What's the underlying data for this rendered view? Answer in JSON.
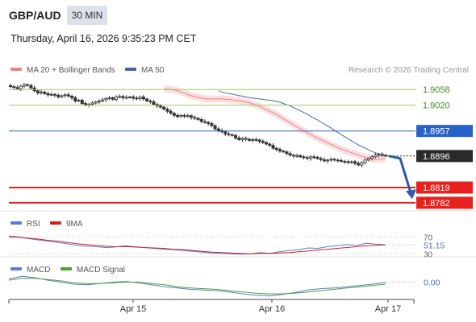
{
  "header": {
    "symbol": "GBP/AUD",
    "timeframe": "30 MIN",
    "datetime": "Thursday, April 16, 2026 9:35:23 PM CET"
  },
  "colors": {
    "ma20": "#f08080",
    "bollinger_fill": "#fbd9d9",
    "ma50": "#3d6aa8",
    "candle": "#333333",
    "resistance": "#9ccc65",
    "pivot": "#2962c8",
    "support": "#e8201e",
    "last_price": "#2a2a2a",
    "rsi": "#5b7bd5",
    "rsi_9ma": "#d62020",
    "macd": "#5b7bd5",
    "macd_signal": "#4ca32a",
    "arrow": "#2a5aa8"
  },
  "chart_data": [
    {
      "type": "candlestick",
      "panel": "price",
      "legend": [
        {
          "name": "MA 20 + Bollinger Bands",
          "color": "#f08080"
        },
        {
          "name": "MA 50",
          "color": "#3d6aa8"
        }
      ],
      "legend_position": "top-left",
      "credit": "Research © 2026 Trading Central",
      "y_range": [
        1.877,
        1.908
      ],
      "levels": [
        {
          "label": "1.9058",
          "value": 1.9058,
          "kind": "resistance"
        },
        {
          "label": "1.9020",
          "value": 1.902,
          "kind": "resistance"
        },
        {
          "label": "1.8957",
          "value": 1.8957,
          "kind": "pivot"
        },
        {
          "label": "1.8896",
          "value": 1.8896,
          "kind": "last"
        },
        {
          "label": "1.8819",
          "value": 1.8819,
          "kind": "support"
        },
        {
          "label": "1.8782",
          "value": 1.8782,
          "kind": "support"
        }
      ],
      "forecast": "bearish",
      "series": [
        {
          "name": "Close",
          "values": [
            1.9065,
            1.9063,
            1.906,
            1.9066,
            1.907,
            1.9068,
            1.9062,
            1.9055,
            1.905,
            1.9052,
            1.9048,
            1.9045,
            1.9046,
            1.9044,
            1.904,
            1.9043,
            1.9045,
            1.9042,
            1.9038,
            1.903,
            1.9032,
            1.9024,
            1.902,
            1.9022,
            1.9025,
            1.9028,
            1.903,
            1.9033,
            1.9036,
            1.9038,
            1.9034,
            1.904,
            1.9041,
            1.9038,
            1.9039,
            1.904,
            1.9037,
            1.9036,
            1.904,
            1.9035,
            1.903,
            1.9028,
            1.9022,
            1.9018,
            1.9015,
            1.901,
            1.9005,
            1.9,
            1.8995,
            1.8992,
            1.8995,
            1.8993,
            1.8994,
            1.899,
            1.8988,
            1.8985,
            1.898,
            1.8978,
            1.8975,
            1.897,
            1.8962,
            1.8958,
            1.8955,
            1.895,
            1.8948,
            1.8946,
            1.894,
            1.8936,
            1.8939,
            1.8937,
            1.8934,
            1.8936,
            1.8935,
            1.8932,
            1.8929,
            1.8925,
            1.8922,
            1.8915,
            1.8912,
            1.8908,
            1.8906,
            1.8902,
            1.8898,
            1.8896,
            1.8897,
            1.8894,
            1.8892,
            1.889,
            1.8894,
            1.8893,
            1.889,
            1.8887,
            1.8884,
            1.8886,
            1.8888,
            1.8886,
            1.8885,
            1.8883,
            1.8882,
            1.888,
            1.8882,
            1.8878,
            1.8874,
            1.888,
            1.8886,
            1.889,
            1.8894,
            1.8898,
            1.89,
            1.8898,
            1.8896
          ]
        },
        {
          "name": "MA 20",
          "values": [
            1.906,
            1.9059,
            1.9058,
            1.9057,
            1.9055,
            1.9052,
            1.9049,
            1.9046,
            1.9043,
            1.9041,
            1.9039,
            1.9037,
            1.9036,
            1.9035,
            1.9035,
            1.9035,
            1.9035,
            1.9035,
            1.9034,
            1.9034,
            1.9033,
            1.9032,
            1.9031,
            1.903,
            1.9028,
            1.9026,
            1.9023,
            1.902,
            1.9017,
            1.9013,
            1.9009,
            1.9005,
            1.9001,
            1.8997,
            1.8992,
            1.8987,
            1.8982,
            1.8977,
            1.8972,
            1.8967,
            1.8962,
            1.8958,
            1.8953,
            1.8948,
            1.8944,
            1.894,
            1.8936,
            1.8932,
            1.8928,
            1.8924,
            1.892,
            1.8916,
            1.8913,
            1.891,
            1.8907,
            1.8904,
            1.8901,
            1.8898,
            1.8895,
            1.8893,
            1.8891,
            1.8889,
            1.8888,
            1.8888,
            1.8889,
            1.8889
          ]
        },
        {
          "name": "MA 50",
          "values": [
            1.9055,
            1.9052,
            1.905,
            1.9048,
            1.9047,
            1.9045,
            1.9043,
            1.9042,
            1.904,
            1.9038,
            1.9037,
            1.9036,
            1.9035,
            1.9034,
            1.9033,
            1.9032,
            1.9031,
            1.9029,
            1.9027,
            1.9024,
            1.9021,
            1.9018,
            1.9014,
            1.901,
            1.9006,
            1.9002,
            1.8998,
            1.8993,
            1.8988,
            1.8984,
            1.8979,
            1.8974,
            1.8969,
            1.8964,
            1.8958,
            1.8953,
            1.8948,
            1.8943,
            1.8938,
            1.8933,
            1.8928,
            1.8923,
            1.8919,
            1.8915,
            1.8911,
            1.8907,
            1.8904,
            1.8901,
            1.8898,
            1.8896
          ]
        }
      ]
    },
    {
      "type": "line",
      "panel": "rsi",
      "legend": [
        {
          "name": "RSI",
          "color": "#5b7bd5"
        },
        {
          "name": "9MA",
          "color": "#d62020"
        }
      ],
      "y_range": [
        25,
        80
      ],
      "tick_labels": [
        "70",
        "30"
      ],
      "current_value": "51.15",
      "series": [
        {
          "name": "RSI",
          "values": [
            72,
            70,
            66,
            63,
            60,
            57,
            54,
            50,
            48,
            47,
            45,
            46,
            49,
            47,
            45,
            43,
            41,
            40,
            38,
            36,
            34,
            32,
            31,
            30,
            29,
            30,
            33,
            31,
            35,
            38,
            40,
            44,
            43,
            47,
            49,
            52,
            50,
            55,
            53,
            51
          ]
        },
        {
          "name": "9MA",
          "values": [
            70,
            69,
            67,
            65,
            62,
            60,
            57,
            54,
            52,
            50,
            48,
            47,
            47,
            46,
            45,
            44,
            43,
            41,
            40,
            38,
            36,
            34,
            33,
            32,
            31,
            30,
            31,
            31,
            32,
            33,
            35,
            37,
            39,
            41,
            43,
            45,
            47,
            49,
            50,
            51
          ]
        }
      ]
    },
    {
      "type": "line",
      "panel": "macd",
      "legend": [
        {
          "name": "MACD",
          "color": "#5b7bd5"
        },
        {
          "name": "MACD Signal",
          "color": "#4ca32a"
        }
      ],
      "y_range": [
        -0.0025,
        0.0012
      ],
      "tick_labels": [
        "0.00"
      ],
      "series": [
        {
          "name": "MACD",
          "values": [
            0.0004,
            0.0008,
            0.0006,
            0.0002,
            -0.0001,
            -0.0004,
            -0.0005,
            -0.0003,
            -0.0001,
            0.0,
            -0.0002,
            -0.0005,
            -0.0008,
            -0.001,
            -0.0012,
            -0.0013,
            -0.0014,
            -0.0016,
            -0.0019,
            -0.0021,
            -0.0022,
            -0.002,
            -0.0017,
            -0.0013,
            -0.0011,
            -0.001,
            -0.0008,
            -0.0006,
            -0.0004,
            -0.0001
          ]
        },
        {
          "name": "MACD Signal",
          "values": [
            0.0002,
            0.0005,
            0.0005,
            0.0003,
            0.0001,
            -0.0002,
            -0.0003,
            -0.0003,
            -0.0002,
            -0.0001,
            -0.0001,
            -0.0003,
            -0.0005,
            -0.0008,
            -0.001,
            -0.0011,
            -0.0012,
            -0.0014,
            -0.0016,
            -0.0018,
            -0.0019,
            -0.0019,
            -0.0018,
            -0.0016,
            -0.0014,
            -0.0012,
            -0.001,
            -0.0008,
            -0.0006,
            -0.0004
          ]
        }
      ]
    }
  ],
  "x_axis": {
    "tick_labels": [
      "Apr 15",
      "Apr 16",
      "Apr 17"
    ]
  }
}
